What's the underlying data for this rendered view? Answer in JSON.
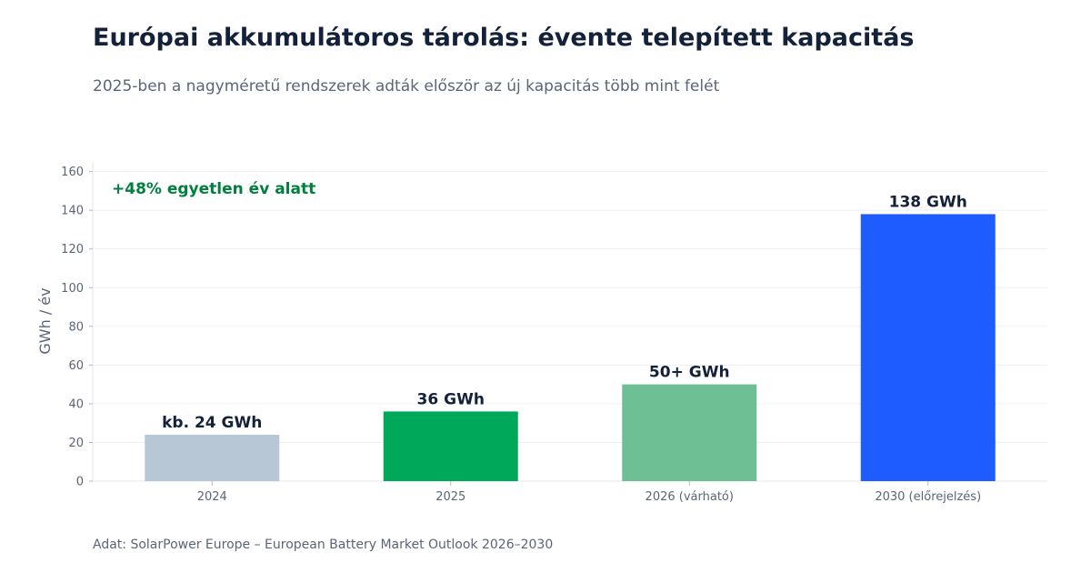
{
  "title": "Európai akkumulátoros tárolás: évente telepített kapacitás",
  "subtitle": "2025-ben a nagyméretű rendszerek adták először az új kapacitás több mint felét",
  "source": "Adat: SolarPower Europe – European Battery Market Outlook 2026–2030",
  "chart_data": {
    "type": "bar",
    "categories": [
      "2024",
      "2025",
      "2026 (várható)",
      "2030 (előrejelzés)"
    ],
    "values": [
      24,
      36,
      50,
      138
    ],
    "data_labels": [
      "kb. 24 GWh",
      "36 GWh",
      "50+ GWh",
      "138 GWh"
    ],
    "bar_colors": [
      "#b8c7d6",
      "#00a85a",
      "#6ebf94",
      "#1f5cff"
    ],
    "ylabel": "GWh / év",
    "ylim": [
      0,
      165
    ],
    "yticks": [
      "0",
      "20",
      "40",
      "60",
      "80",
      "100",
      "120",
      "140",
      "160"
    ],
    "annotation": "+48% egyetlen év alatt",
    "annotation_color": "#00803e",
    "grid": true
  }
}
